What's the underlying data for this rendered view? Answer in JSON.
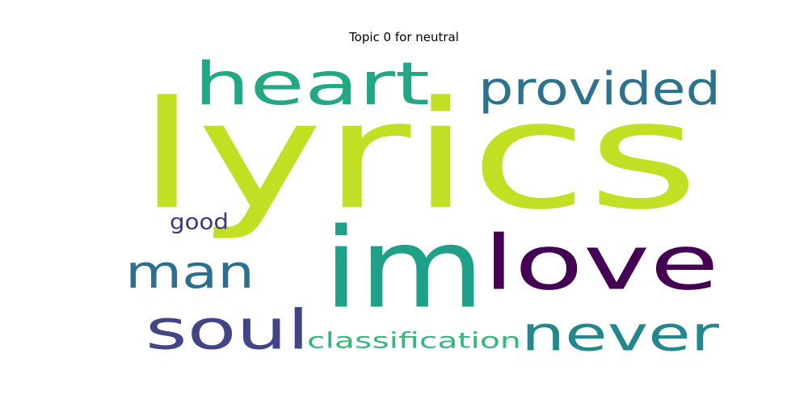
{
  "chart_data": {
    "type": "wordcloud",
    "title": "Topic 0 for neutral",
    "words": [
      {
        "text": "lyrics",
        "color": "#c2df23"
      },
      {
        "text": "heart",
        "color": "#22a884"
      },
      {
        "text": "provided",
        "color": "#2c728e"
      },
      {
        "text": "im",
        "color": "#1fa088"
      },
      {
        "text": "love",
        "color": "#440154"
      },
      {
        "text": "man",
        "color": "#2e6e8e"
      },
      {
        "text": "never",
        "color": "#23888e"
      },
      {
        "text": "soul",
        "color": "#414487"
      },
      {
        "text": "good",
        "color": "#46337e"
      },
      {
        "text": "classification",
        "color": "#35b779"
      }
    ]
  }
}
